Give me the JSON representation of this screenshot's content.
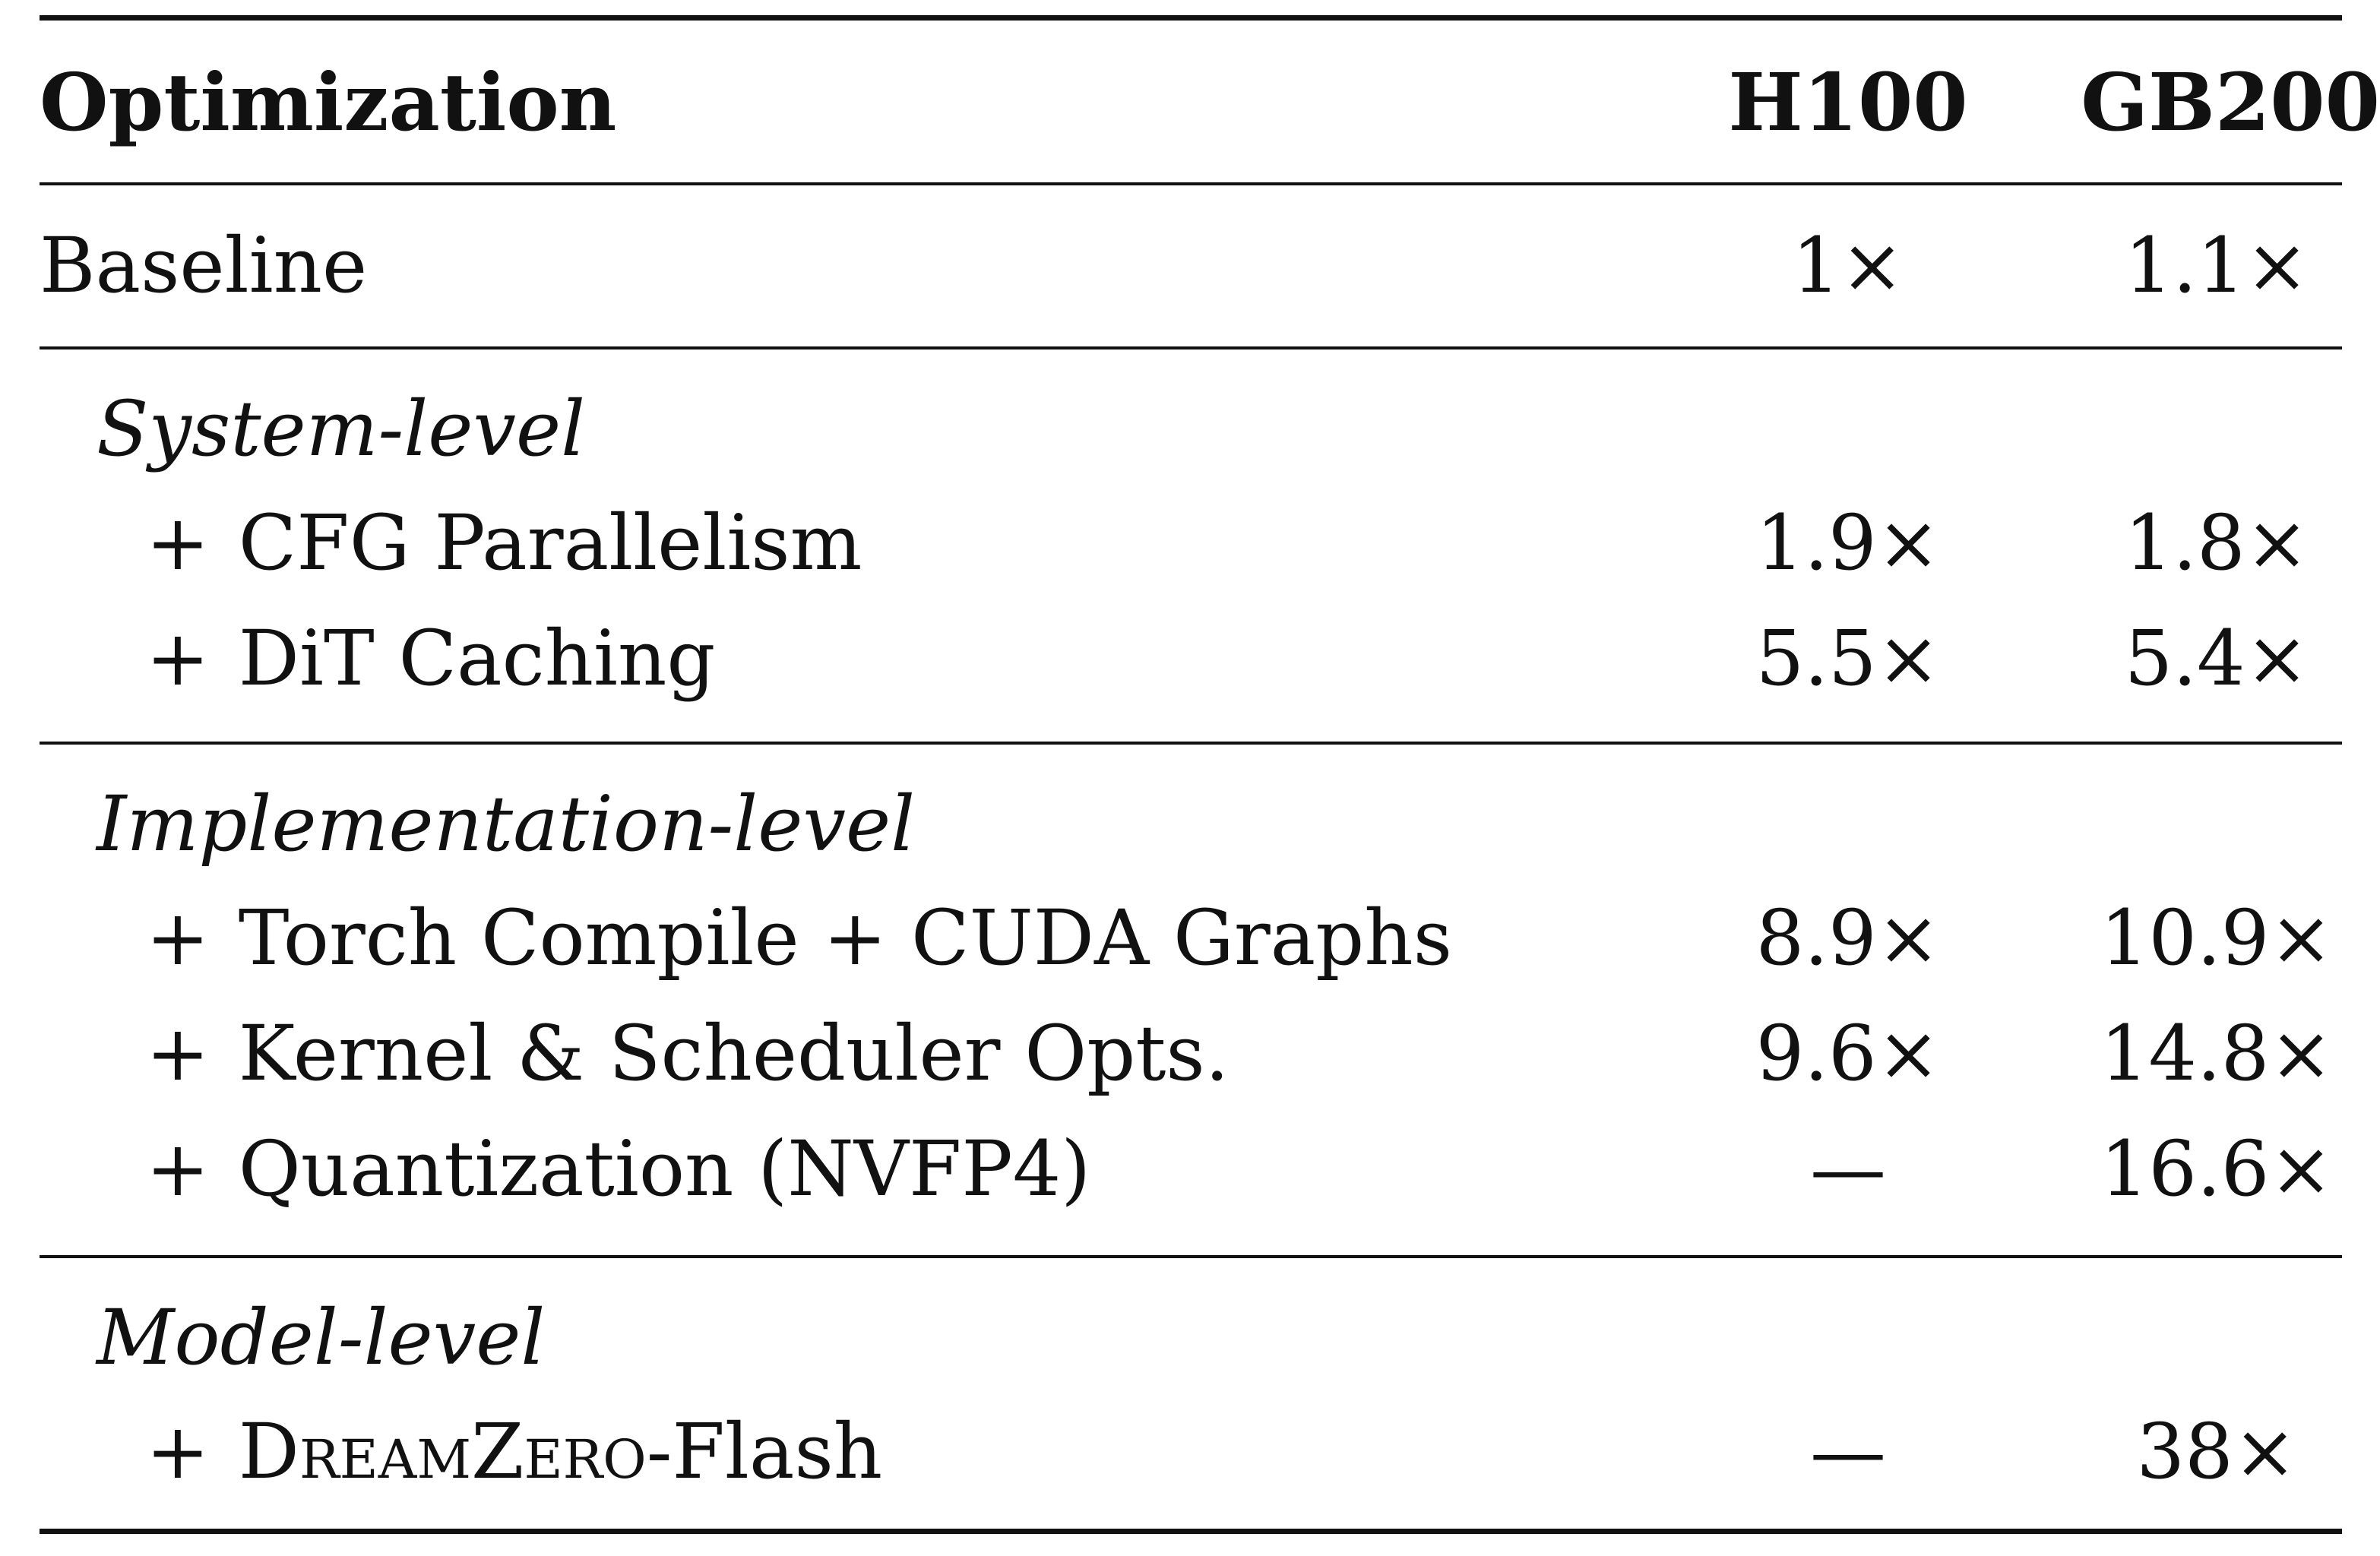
{
  "header": {
    "optimization": "Optimization",
    "h100": "H100",
    "gb200": "GB200"
  },
  "baseline": {
    "label": "Baseline",
    "h100": "1×",
    "gb200": "1.1×"
  },
  "system_level": {
    "title": "System-level",
    "rows": [
      {
        "plus": "+",
        "label": "CFG Parallelism",
        "h100": "1.9×",
        "gb200": "1.8×"
      },
      {
        "plus": "+",
        "label": "DiT Caching",
        "h100": "5.5×",
        "gb200": "5.4×"
      }
    ]
  },
  "implementation_level": {
    "title": "Implementation-level",
    "rows": [
      {
        "plus": "+",
        "label": "Torch Compile + CUDA Graphs",
        "h100": "8.9×",
        "gb200": "10.9×"
      },
      {
        "plus": "+",
        "label": "Kernel & Scheduler Opts.",
        "h100": "9.6×",
        "gb200": "14.8×"
      },
      {
        "plus": "+",
        "label": "Quantization (NVFP4)",
        "h100": "—",
        "gb200": "16.6×"
      }
    ]
  },
  "model_level": {
    "title": "Model-level",
    "rows": [
      {
        "plus": "+",
        "label_sc": "DreamZero",
        "label_suffix": "-Flash",
        "h100": "—",
        "gb200": "38×"
      }
    ]
  }
}
